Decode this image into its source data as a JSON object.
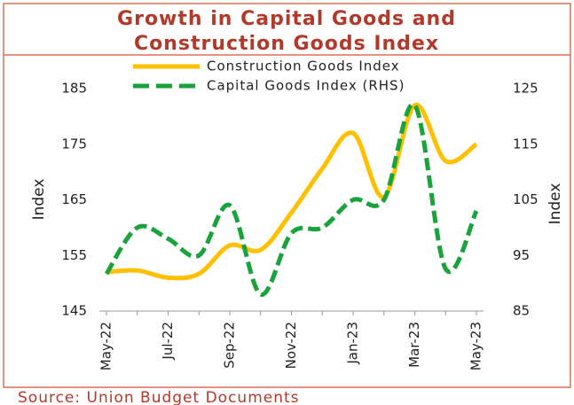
{
  "chart_data": {
    "type": "line",
    "title": "Growth in Capital Goods and Construction Goods Index",
    "source": "Source: Union Budget Documents",
    "ylabel": "Index",
    "y2label": "Index",
    "categories": [
      "May-22",
      null,
      "Jul-22",
      null,
      "Sep-22",
      null,
      "Nov-22",
      null,
      "Jan-23",
      null,
      "Mar-23",
      null,
      "May-23"
    ],
    "series": [
      {
        "name": "Construction Goods Index",
        "color": "#ffc000",
        "dash": false,
        "axis": "y",
        "values": [
          152,
          152.3,
          151,
          151.7,
          156.8,
          156,
          162.7,
          170.6,
          177,
          165.5,
          182,
          172,
          175
        ]
      },
      {
        "name": "Capital Goods Index (RHS)",
        "color": "#1aa33c",
        "dash": true,
        "axis": "y2",
        "values": [
          91.7,
          100,
          98,
          95,
          104,
          88,
          99,
          100,
          105,
          105,
          122,
          92.6,
          103
        ]
      }
    ],
    "ylim": [
      145,
      185
    ],
    "yticks": [
      145,
      155,
      165,
      175,
      185
    ],
    "y2lim": [
      85,
      125
    ],
    "y2ticks": [
      85,
      95,
      105,
      115,
      125
    ],
    "legend": "top"
  }
}
